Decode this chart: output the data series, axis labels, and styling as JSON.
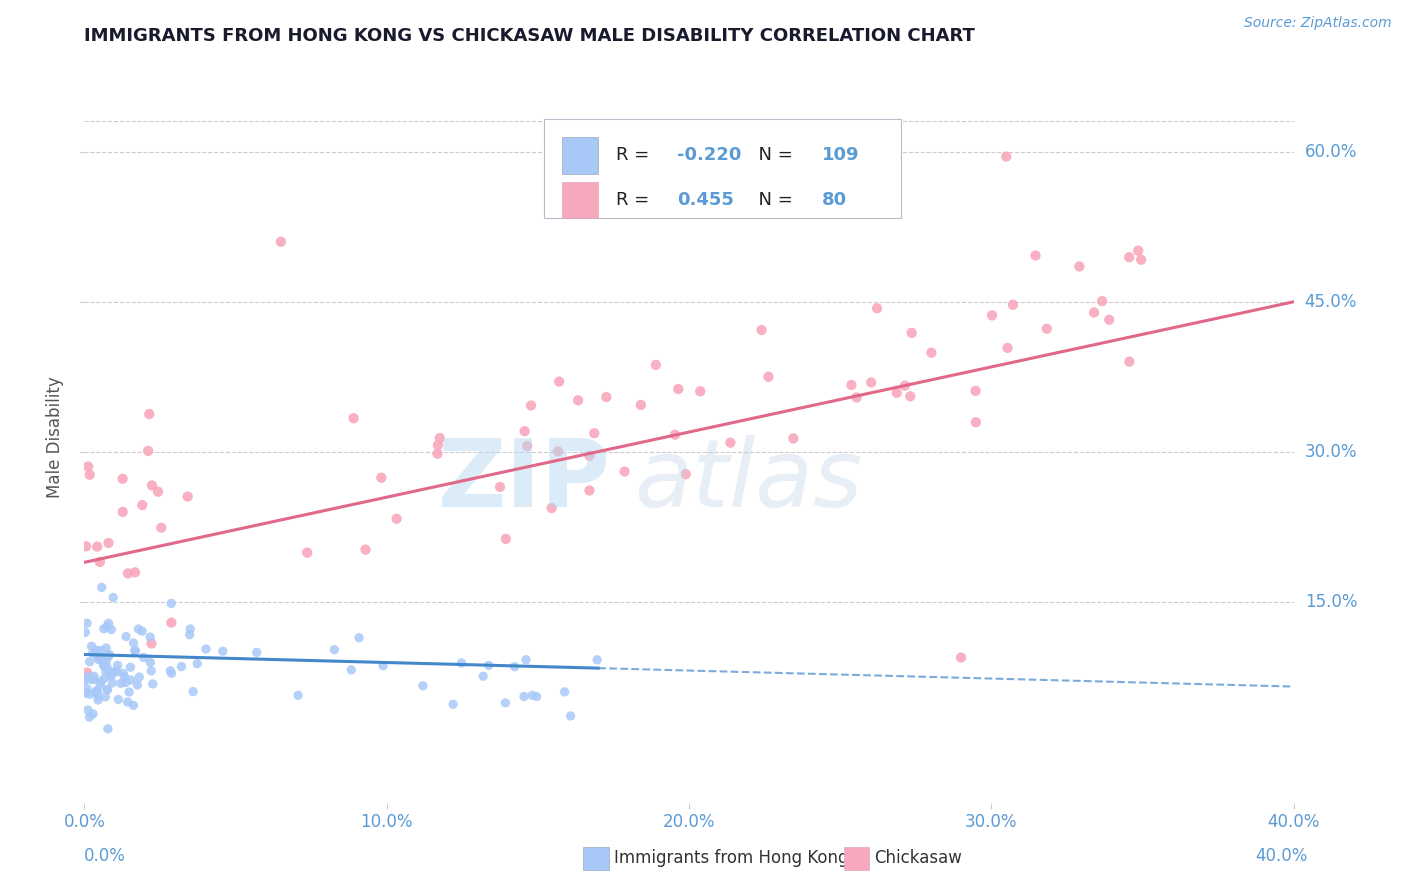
{
  "title": "IMMIGRANTS FROM HONG KONG VS CHICKASAW MALE DISABILITY CORRELATION CHART",
  "source_text": "Source: ZipAtlas.com",
  "ylabel": "Male Disability",
  "xlim": [
    0.0,
    0.4
  ],
  "ylim": [
    -0.05,
    0.68
  ],
  "yticks": [
    0.15,
    0.3,
    0.45,
    0.6
  ],
  "ytick_labels": [
    "15.0%",
    "30.0%",
    "45.0%",
    "60.0%"
  ],
  "xticks": [
    0.0,
    0.1,
    0.2,
    0.3,
    0.4
  ],
  "xtick_labels": [
    "0.0%",
    "10.0%",
    "20.0%",
    "30.0%",
    "40.0%"
  ],
  "series1_name": "Immigrants from Hong Kong",
  "series1_R": -0.22,
  "series1_N": 109,
  "series1_color": "#a8c8f8",
  "series1_line_color": "#4488cc",
  "series2_name": "Chickasaw",
  "series2_R": 0.455,
  "series2_N": 80,
  "series2_color": "#f8a8bc",
  "series2_line_color": "#e06888",
  "title_color": "#1a1a2e",
  "axis_color": "#5b9bd5",
  "background_color": "#ffffff",
  "grid_color": "#cccccc",
  "legend_box_color": "#e8e8f0"
}
